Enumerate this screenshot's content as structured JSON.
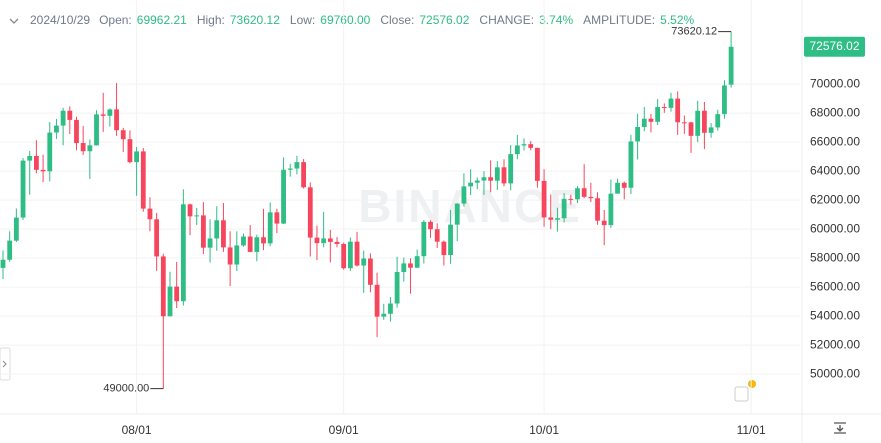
{
  "header": {
    "date": "2024/10/29",
    "fields": [
      {
        "label": "Open:",
        "value": "69962.21"
      },
      {
        "label": "High:",
        "value": "73620.12"
      },
      {
        "label": "Low:",
        "value": "69760.00"
      },
      {
        "label": "Close:",
        "value": "72576.02"
      },
      {
        "label": "CHANGE:",
        "value": "3.74%"
      },
      {
        "label": "AMPLITUDE:",
        "value": "5.52%"
      }
    ]
  },
  "chart_data": {
    "type": "candlestick",
    "watermark": "BINANCE",
    "up_color": "#2ebd85",
    "down_color": "#f6465d",
    "grid": true,
    "high_label": "73620.12",
    "low_label": "49000.00",
    "last_price": "72576.02",
    "x": [
      "07/12",
      "07/13",
      "07/14",
      "07/15",
      "07/16",
      "07/17",
      "07/18",
      "07/19",
      "07/20",
      "07/21",
      "07/22",
      "07/23",
      "07/24",
      "07/25",
      "07/26",
      "07/27",
      "07/28",
      "07/29",
      "07/30",
      "07/31",
      "08/01",
      "08/02",
      "08/03",
      "08/04",
      "08/05",
      "08/06",
      "08/07",
      "08/08",
      "08/09",
      "08/10",
      "08/11",
      "08/12",
      "08/13",
      "08/14",
      "08/15",
      "08/16",
      "08/17",
      "08/18",
      "08/19",
      "08/20",
      "08/21",
      "08/22",
      "08/23",
      "08/24",
      "08/25",
      "08/26",
      "08/27",
      "08/28",
      "08/29",
      "08/30",
      "08/31",
      "09/01",
      "09/02",
      "09/03",
      "09/04",
      "09/05",
      "09/06",
      "09/07",
      "09/08",
      "09/09",
      "09/10",
      "09/11",
      "09/12",
      "09/13",
      "09/14",
      "09/15",
      "09/16",
      "09/17",
      "09/18",
      "09/19",
      "09/20",
      "09/21",
      "09/22",
      "09/23",
      "09/24",
      "09/25",
      "09/26",
      "09/27",
      "09/28",
      "09/29",
      "09/30",
      "10/01",
      "10/02",
      "10/03",
      "10/04",
      "10/05",
      "10/06",
      "10/07",
      "10/08",
      "10/09",
      "10/10",
      "10/11",
      "10/12",
      "10/13",
      "10/14",
      "10/15",
      "10/16",
      "10/17",
      "10/18",
      "10/19",
      "10/20",
      "10/21",
      "10/22",
      "10/23",
      "10/24",
      "10/25",
      "10/26",
      "10/27",
      "10/28",
      "10/29"
    ],
    "open": [
      57326,
      57887,
      59203,
      60797,
      64724,
      65043,
      64087,
      63987,
      66661,
      67139,
      68165,
      67532,
      65936,
      65372,
      65777,
      67912,
      67813,
      68255,
      66819,
      66201,
      64619,
      65357,
      61414,
      60676,
      58116,
      53991,
      56034,
      55027,
      61711,
      60881,
      60946,
      58719,
      59355,
      60611,
      58739,
      57560,
      58874,
      59491,
      58427,
      59438,
      59014,
      61157,
      60380,
      64094,
      64178,
      64620,
      62882,
      59415,
      59035,
      59355,
      59120,
      58974,
      57302,
      59133,
      57488,
      57971,
      56160,
      53962,
      54160,
      54870,
      57042,
      57635,
      57338,
      58132,
      60499,
      59993,
      59132,
      58213,
      60309,
      61759,
      62948,
      63201,
      63348,
      63578,
      63339,
      64262,
      63152,
      65173,
      65769,
      65858,
      65602,
      63327,
      60804,
      60649,
      60752,
      62086,
      62058,
      62819,
      62224,
      62131,
      60583,
      60275,
      62445,
      63193,
      62851,
      66047,
      67042,
      67612,
      67399,
      68418,
      68362,
      69002,
      67367,
      67361,
      66432,
      68161,
      66642,
      67014,
      67929,
      69962.21
    ],
    "high": [
      58533,
      59850,
      61420,
      64900,
      65388,
      66128,
      65133,
      67386,
      67598,
      68366,
      68474,
      67750,
      67102,
      66175,
      68200,
      69399,
      68318,
      70079,
      66987,
      66810,
      65659,
      65593,
      62198,
      61117,
      58305,
      57059,
      57736,
      62745,
      61751,
      61464,
      61858,
      60680,
      61572,
      61800,
      59850,
      59847,
      59700,
      60284,
      59617,
      61400,
      61834,
      61400,
      64955,
      64513,
      65050,
      64830,
      63213,
      60235,
      61190,
      59945,
      59450,
      59077,
      59425,
      59810,
      58519,
      58327,
      56995,
      54850,
      55318,
      58088,
      58044,
      57981,
      58588,
      60625,
      60610,
      60395,
      59210,
      61320,
      61786,
      63850,
      64133,
      63559,
      64000,
      64745,
      64688,
      64817,
      65800,
      66498,
      66260,
      66076,
      65618,
      64130,
      62390,
      61477,
      62484,
      62370,
      62975,
      64478,
      63200,
      62543,
      61320,
      63417,
      63480,
      63285,
      66500,
      67950,
      68424,
      67939,
      68969,
      68668,
      69400,
      69500,
      67836,
      67400,
      68850,
      68771,
      67317,
      68234,
      70270,
      73620.12
    ],
    "low": [
      56552,
      57756,
      59111,
      60632,
      62373,
      63854,
      63238,
      63300,
      66222,
      65777,
      66559,
      65441,
      65111,
      63456,
      65757,
      66705,
      67066,
      66428,
      65323,
      64532,
      62302,
      61200,
      59850,
      57122,
      49000,
      53973,
      54558,
      54730,
      59587,
      60288,
      58286,
      57688,
      58505,
      58433,
      56078,
      57110,
      58785,
      58408,
      57787,
      58548,
      58823,
      59724,
      60342,
      63619,
      63775,
      62800,
      58116,
      57860,
      58745,
      57703,
      58745,
      57201,
      57128,
      57415,
      55606,
      55643,
      52550,
      53745,
      53629,
      54591,
      56386,
      55545,
      57323,
      57632,
      59400,
      58696,
      57493,
      57610,
      59174,
      61555,
      62350,
      62759,
      62357,
      62538,
      62700,
      62947,
      62670,
      64819,
      65422,
      65432,
      62856,
      60164,
      60000,
      59828,
      60459,
      61689,
      61798,
      62128,
      61860,
      60300,
      58895,
      60080,
      62445,
      62050,
      62430,
      64800,
      66750,
      66666,
      67177,
      68020,
      68100,
      66500,
      66571,
      65260,
      66000,
      65520,
      66300,
      66800,
      67618,
      69760
    ],
    "close": [
      57887,
      59204,
      60797,
      64724,
      65043,
      64087,
      63987,
      66660,
      67139,
      68165,
      67532,
      65936,
      65372,
      65777,
      67912,
      67813,
      68255,
      66819,
      66201,
      64619,
      65357,
      61415,
      60680,
      58116,
      53991,
      56034,
      55027,
      61710,
      60880,
      60946,
      58719,
      59354,
      60610,
      58739,
      57560,
      58874,
      59491,
      58427,
      59438,
      59013,
      61157,
      60381,
      64094,
      64178,
      64620,
      62882,
      59415,
      59035,
      59355,
      59120,
      58974,
      57302,
      59133,
      57488,
      57971,
      56160,
      53962,
      54160,
      54870,
      57042,
      57636,
      57338,
      58132,
      60499,
      59993,
      59132,
      58213,
      60309,
      61759,
      62947,
      63201,
      63348,
      63578,
      63339,
      64262,
      63152,
      65173,
      65769,
      65858,
      65602,
      63327,
      60805,
      60649,
      60752,
      62086,
      62058,
      62819,
      62224,
      62131,
      60582,
      60275,
      62445,
      63193,
      62851,
      66046,
      67041,
      67612,
      67399,
      68418,
      68362,
      69001,
      67367,
      67361,
      66432,
      68161,
      66642,
      67014,
      67929,
      69908,
      72576.02
    ],
    "ylim": [
      47250,
      75800
    ],
    "yticks": [
      {
        "value": 50000,
        "label": "50000.00"
      },
      {
        "value": 52000,
        "label": "52000.00"
      },
      {
        "value": 54000,
        "label": "54000.00"
      },
      {
        "value": 56000,
        "label": "56000.00"
      },
      {
        "value": 58000,
        "label": "58000.00"
      },
      {
        "value": 60000,
        "label": "60000.00"
      },
      {
        "value": 62000,
        "label": "62000.00"
      },
      {
        "value": 64000,
        "label": "64000.00"
      },
      {
        "value": 66000,
        "label": "66000.00"
      },
      {
        "value": 68000,
        "label": "68000.00"
      },
      {
        "value": 70000,
        "label": "70000.00"
      }
    ],
    "xticks": [
      {
        "value": 20,
        "label": "08/01"
      },
      {
        "value": 51,
        "label": "09/01"
      },
      {
        "value": 81,
        "label": "10/01"
      },
      {
        "value": 112,
        "label": "11/01"
      }
    ]
  }
}
